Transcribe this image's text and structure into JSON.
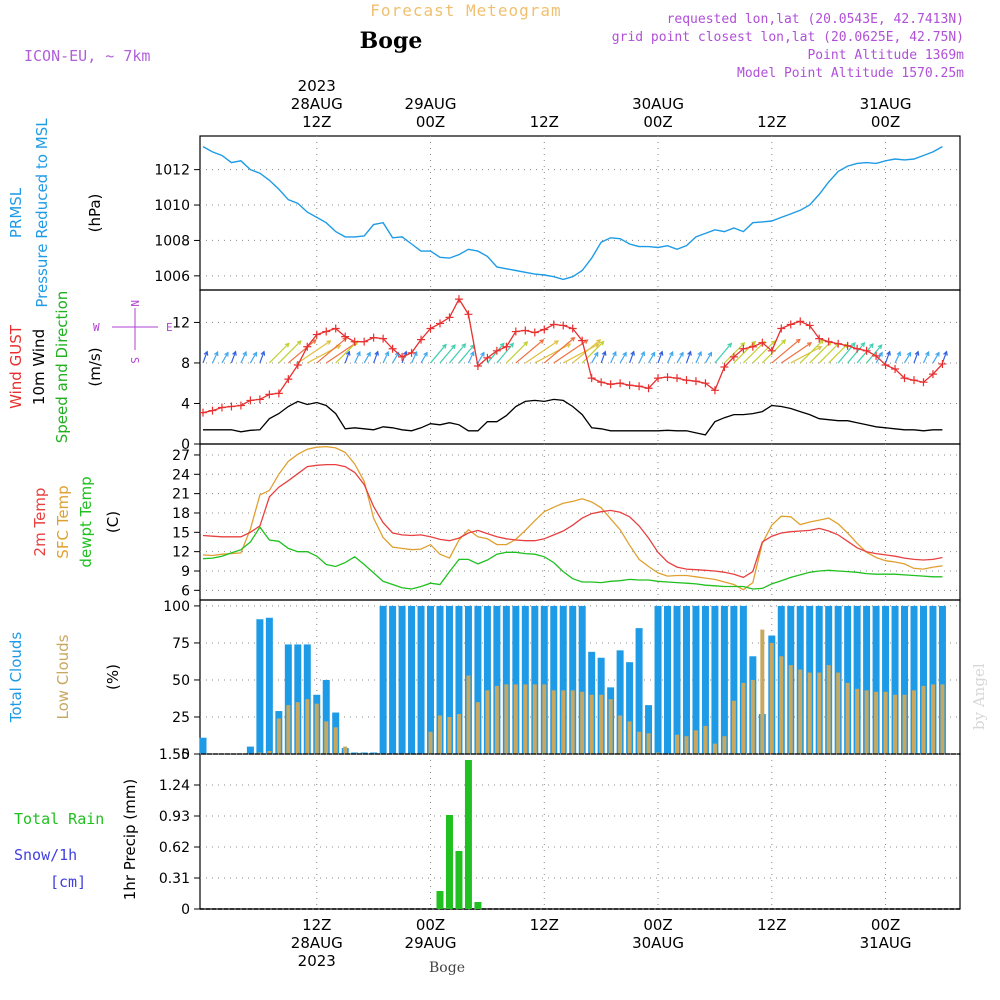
{
  "header": {
    "title": "Forecast Meteogram",
    "location": "Boge",
    "model": "ICON-EU, ~ 7km",
    "requested": "requested lon,lat (20.0543E, 42.7413N)",
    "grid_point": "grid point closest lon,lat (20.0625E, 42.75N)",
    "point_altitude": "Point Altitude 1369m",
    "model_altitude": "Model Point Altitude 1570.25m",
    "footer_location": "Boge",
    "watermark": "by Angel"
  },
  "colors": {
    "pressure": "#1e9be6",
    "gust": "#e83030",
    "wind": "#000000",
    "temp": "#e84040",
    "sfc_temp": "#e0a030",
    "dewpoint": "#20c020",
    "total_cloud": "#1e9be6",
    "low_cloud": "#c8a860",
    "rain": "#20c020",
    "snow": "#4040e0",
    "compass": "#b040d0",
    "title_color": "#f0c070",
    "header_purple": "#a040d0"
  },
  "time_axis": {
    "start": "2023-08-28 00Z",
    "step_hours": 1,
    "count": 79,
    "top_labels": [
      {
        "lines": [
          "2023",
          "28AUG",
          "12Z"
        ],
        "hour": 12
      },
      {
        "lines": [
          "29AUG",
          "00Z"
        ],
        "hour": 24
      },
      {
        "lines": [
          "12Z"
        ],
        "hour": 36
      },
      {
        "lines": [
          "30AUG",
          "00Z"
        ],
        "hour": 48
      },
      {
        "lines": [
          "12Z"
        ],
        "hour": 60
      },
      {
        "lines": [
          "31AUG",
          "00Z"
        ],
        "hour": 72
      }
    ],
    "bottom_labels": [
      {
        "lines": [
          "12Z",
          "28AUG",
          "2023"
        ],
        "hour": 12
      },
      {
        "lines": [
          "00Z",
          "29AUG"
        ],
        "hour": 24
      },
      {
        "lines": [
          "12Z"
        ],
        "hour": 36
      },
      {
        "lines": [
          "00Z",
          "30AUG"
        ],
        "hour": 48
      },
      {
        "lines": [
          "12Z"
        ],
        "hour": 60
      },
      {
        "lines": [
          "00Z",
          "31AUG"
        ],
        "hour": 72
      }
    ]
  },
  "chart_data": [
    {
      "type": "line",
      "panel": "pressure",
      "left_labels": [
        "PRMSL",
        "Pressure Reduced to MSL"
      ],
      "ylabel": "(hPa)",
      "yticks": [
        1006,
        1008,
        1010,
        1012
      ],
      "ylim": [
        1005.2,
        1013.9
      ],
      "series": [
        {
          "name": "PRMSL",
          "values": [
            1013.3,
            1013.0,
            1012.8,
            1012.4,
            1012.5,
            1012.0,
            1011.8,
            1011.4,
            1010.9,
            1010.3,
            1010.1,
            1009.6,
            1009.3,
            1009.0,
            1008.5,
            1008.2,
            1008.2,
            1008.25,
            1008.9,
            1009.0,
            1008.15,
            1008.2,
            1007.8,
            1007.4,
            1007.4,
            1007.05,
            1007.0,
            1007.2,
            1007.5,
            1007.4,
            1007.1,
            1006.5,
            1006.4,
            1006.3,
            1006.2,
            1006.1,
            1006.05,
            1005.95,
            1005.8,
            1005.95,
            1006.3,
            1007.0,
            1007.9,
            1008.15,
            1008.1,
            1007.8,
            1007.65,
            1007.65,
            1007.6,
            1007.7,
            1007.5,
            1007.7,
            1008.2,
            1008.4,
            1008.6,
            1008.5,
            1008.7,
            1008.5,
            1009.0,
            1009.05,
            1009.1,
            1009.3,
            1009.5,
            1009.7,
            1010.0,
            1010.6,
            1011.3,
            1011.9,
            1012.2,
            1012.35,
            1012.4,
            1012.35,
            1012.5,
            1012.6,
            1012.55,
            1012.6,
            1012.8,
            1013.0,
            1013.3
          ]
        }
      ]
    },
    {
      "type": "line",
      "panel": "wind",
      "left_labels": [
        "Wind GUST",
        "10m Wind",
        "Speed and Direction"
      ],
      "ylabel": "(m/s)",
      "compass": {
        "n": "N",
        "e": "E",
        "s": "S",
        "w": "W"
      },
      "yticks": [
        0,
        4,
        8,
        12
      ],
      "ylim": [
        0,
        15.2
      ],
      "series": [
        {
          "name": "Wind GUST",
          "values": [
            3.1,
            3.3,
            3.6,
            3.7,
            3.8,
            4.3,
            4.4,
            4.9,
            5.0,
            6.4,
            7.8,
            9.6,
            10.8,
            11.1,
            11.4,
            10.6,
            10.1,
            10.1,
            10.5,
            10.4,
            9.4,
            8.6,
            9.0,
            10.3,
            11.4,
            11.9,
            12.5,
            14.3,
            12.8,
            7.7,
            8.5,
            9.2,
            9.6,
            11.1,
            11.2,
            11.0,
            11.3,
            11.8,
            11.7,
            11.4,
            10.2,
            6.5,
            6.1,
            5.9,
            6.0,
            5.8,
            5.7,
            5.5,
            6.5,
            6.6,
            6.5,
            6.3,
            6.2,
            6.0,
            5.3,
            7.6,
            8.6,
            9.4,
            9.6,
            10.0,
            9.2,
            11.4,
            11.8,
            12.1,
            11.7,
            10.4,
            10.1,
            9.9,
            9.7,
            9.4,
            9.2,
            8.7,
            7.8,
            7.4,
            6.5,
            6.3,
            6.1,
            6.9,
            7.9
          ]
        },
        {
          "name": "10m Wind",
          "values": [
            1.4,
            1.4,
            1.4,
            1.4,
            1.2,
            1.35,
            1.4,
            2.5,
            3.0,
            3.7,
            4.2,
            3.9,
            4.1,
            3.8,
            3.0,
            1.5,
            1.6,
            1.5,
            1.4,
            1.7,
            1.6,
            1.4,
            1.3,
            1.6,
            2.0,
            1.9,
            2.1,
            1.9,
            1.3,
            1.3,
            2.2,
            2.2,
            2.8,
            3.7,
            4.2,
            4.3,
            4.2,
            4.4,
            4.3,
            3.7,
            2.9,
            1.6,
            1.5,
            1.3,
            1.3,
            1.3,
            1.3,
            1.3,
            1.3,
            1.35,
            1.3,
            1.3,
            1.1,
            0.9,
            2.2,
            2.6,
            2.9,
            2.9,
            3.0,
            3.2,
            3.8,
            3.7,
            3.5,
            3.2,
            2.9,
            2.5,
            2.4,
            2.3,
            2.3,
            2.1,
            1.9,
            1.7,
            1.6,
            1.5,
            1.4,
            1.4,
            1.3,
            1.4,
            1.4
          ]
        }
      ]
    },
    {
      "type": "line",
      "panel": "temperature",
      "left_labels": [
        "2m Temp",
        "SFC Temp",
        "dewpt Temp"
      ],
      "ylabel": "(C)",
      "yticks": [
        6,
        9,
        12,
        15,
        18,
        21,
        24,
        27
      ],
      "ylim": [
        4.5,
        28.7
      ],
      "series": [
        {
          "name": "2m Temp",
          "values": [
            14.5,
            14.4,
            14.3,
            14.3,
            14.3,
            15.0,
            16.0,
            20.5,
            22.0,
            23.0,
            24.1,
            25.2,
            25.4,
            25.5,
            25.5,
            25.2,
            24.3,
            22.4,
            19.0,
            16.5,
            14.9,
            14.6,
            14.5,
            14.6,
            14.3,
            13.9,
            13.7,
            14.1,
            14.9,
            15.3,
            14.8,
            14.3,
            14.0,
            13.8,
            13.7,
            13.7,
            14.0,
            14.6,
            15.2,
            16.1,
            17.2,
            17.9,
            18.2,
            18.4,
            18.1,
            17.4,
            16.0,
            14.1,
            11.9,
            10.4,
            9.6,
            9.3,
            9.2,
            9.1,
            9.0,
            8.8,
            8.5,
            8.0,
            8.9,
            13.5,
            14.4,
            14.9,
            15.1,
            15.2,
            15.3,
            15.6,
            15.2,
            14.6,
            13.6,
            12.6,
            12.0,
            11.7,
            11.5,
            11.3,
            11.0,
            10.8,
            10.7,
            10.8,
            11.1
          ]
        },
        {
          "name": "SFC Temp",
          "values": [
            11.5,
            11.4,
            11.6,
            11.7,
            11.8,
            15.5,
            20.8,
            21.5,
            24.0,
            26.0,
            27.1,
            27.9,
            28.2,
            28.3,
            28.1,
            27.4,
            25.6,
            22.9,
            17.2,
            14.2,
            12.7,
            12.5,
            12.3,
            12.4,
            13.1,
            11.6,
            11.0,
            13.8,
            15.4,
            14.3,
            14.0,
            13.1,
            13.1,
            13.9,
            15.3,
            16.8,
            18.2,
            18.9,
            19.5,
            19.8,
            20.2,
            19.7,
            18.8,
            17.1,
            15.4,
            13.0,
            10.8,
            9.7,
            8.7,
            8.2,
            8.3,
            8.3,
            8.1,
            7.9,
            7.7,
            7.3,
            6.9,
            6.1,
            7.2,
            13.3,
            16.1,
            17.5,
            17.4,
            16.2,
            16.6,
            16.9,
            17.2,
            16.3,
            14.9,
            13.3,
            11.9,
            11.1,
            10.6,
            10.4,
            10.1,
            9.4,
            9.3,
            9.6,
            9.8
          ]
        },
        {
          "name": "dewpt Temp",
          "values": [
            10.9,
            11.0,
            11.3,
            11.8,
            12.3,
            13.5,
            15.8,
            13.8,
            13.6,
            12.5,
            12.0,
            12.0,
            11.3,
            10.0,
            9.7,
            10.3,
            11.2,
            10.0,
            8.7,
            7.4,
            6.9,
            6.4,
            6.2,
            6.6,
            7.1,
            6.9,
            8.9,
            10.8,
            10.8,
            10.1,
            10.7,
            11.6,
            11.9,
            11.9,
            11.7,
            11.6,
            11.2,
            10.3,
            8.9,
            7.8,
            7.3,
            7.3,
            7.2,
            7.4,
            7.5,
            7.7,
            7.6,
            7.6,
            7.4,
            7.3,
            7.2,
            7.1,
            7.0,
            6.8,
            6.7,
            6.6,
            6.6,
            6.6,
            6.2,
            6.3,
            7.0,
            7.5,
            8.0,
            8.4,
            8.8,
            9.0,
            9.1,
            9.0,
            8.9,
            8.8,
            8.6,
            8.5,
            8.5,
            8.5,
            8.4,
            8.3,
            8.2,
            8.1,
            8.1
          ]
        }
      ]
    },
    {
      "type": "bar",
      "panel": "clouds",
      "left_labels": [
        "Total Clouds",
        "Low Clouds"
      ],
      "ylabel": "(%)",
      "yticks": [
        0,
        25,
        50,
        75,
        100
      ],
      "ylim": [
        0,
        104
      ],
      "series": [
        {
          "name": "Total Clouds",
          "values": [
            11,
            0,
            0,
            0,
            0,
            5,
            91,
            92,
            29,
            74,
            74,
            74,
            40,
            50,
            28,
            4,
            1,
            1,
            1,
            100,
            100,
            100,
            100,
            100,
            100,
            100,
            100,
            100,
            100,
            100,
            100,
            100,
            100,
            100,
            100,
            100,
            100,
            100,
            100,
            100,
            100,
            69,
            65,
            45,
            70,
            62,
            85,
            33,
            100,
            100,
            100,
            100,
            100,
            100,
            100,
            100,
            100,
            100,
            66,
            27,
            80,
            100,
            100,
            100,
            100,
            100,
            100,
            100,
            100,
            100,
            100,
            100,
            100,
            100,
            100,
            100,
            100,
            100,
            100
          ]
        },
        {
          "name": "Low Clouds",
          "values": [
            0,
            0,
            0,
            0,
            0,
            0,
            1,
            2,
            24,
            33,
            35,
            37,
            34,
            22,
            18,
            5,
            0,
            0,
            0,
            0,
            0,
            0,
            0,
            0,
            15,
            26,
            25,
            27,
            53,
            35,
            43,
            46,
            47,
            47,
            47,
            47,
            47,
            43,
            43,
            43,
            42,
            40,
            40,
            37,
            26,
            22,
            15,
            14,
            1,
            0,
            13,
            12,
            16,
            19,
            7,
            12,
            36,
            48,
            50,
            84,
            75,
            66,
            60,
            57,
            55,
            55,
            60,
            55,
            48,
            44,
            43,
            42,
            42,
            40,
            40,
            43,
            46,
            47,
            47
          ]
        }
      ]
    },
    {
      "type": "bar",
      "panel": "precipitation",
      "left_labels": [
        "Total  Rain",
        "Snow/1h",
        "[cm]"
      ],
      "ylabel": "1hr Precip (mm)",
      "yticks": [
        0,
        0.31,
        0.62,
        0.93,
        1.24,
        1.55
      ],
      "ylim": [
        0,
        1.55
      ],
      "series": [
        {
          "name": "Total  Rain",
          "values": [
            0,
            0,
            0,
            0,
            0,
            0,
            0,
            0,
            0,
            0,
            0,
            0,
            0,
            0,
            0,
            0,
            0,
            0,
            0,
            0,
            0,
            0,
            0,
            0,
            0,
            0.18,
            0.94,
            0.58,
            1.49,
            0.07,
            0,
            0,
            0,
            0,
            0,
            0,
            0,
            0,
            0,
            0,
            0,
            0,
            0,
            0,
            0,
            0,
            0,
            0,
            0,
            0,
            0,
            0,
            0,
            0,
            0,
            0,
            0,
            0,
            0,
            0,
            0,
            0,
            0,
            0,
            0,
            0,
            0,
            0,
            0,
            0,
            0,
            0,
            0,
            0,
            0,
            0,
            0,
            0,
            0
          ]
        }
      ]
    }
  ]
}
